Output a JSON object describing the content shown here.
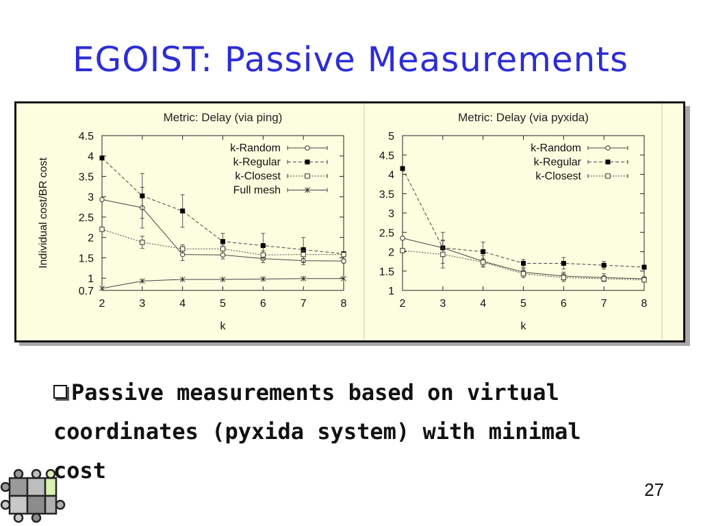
{
  "slide": {
    "title": "EGOIST: Passive Measurements",
    "bullet": "Passive measurements based on virtual coordinates (pyxida system) with minimal cost",
    "page_number": "27"
  },
  "chart_data": [
    {
      "type": "line",
      "title": "Metric: Delay (via ping)",
      "xlabel": "k",
      "ylabel": "Individual cost/BR cost",
      "x": [
        2,
        3,
        4,
        5,
        6,
        7,
        8
      ],
      "xlim": [
        2,
        8
      ],
      "ylim": [
        0.7,
        4.5
      ],
      "yticks": [
        "0.7",
        "1",
        "1.5",
        "2",
        "2.5",
        "3",
        "3.5",
        "4",
        "4.5"
      ],
      "xticks": [
        "2",
        "3",
        "4",
        "5",
        "6",
        "7",
        "8"
      ],
      "legend": "top-right",
      "series": [
        {
          "name": "k-Random",
          "marker": "open-circle",
          "dash": "solid",
          "values": [
            2.93,
            2.73,
            1.58,
            1.57,
            1.48,
            1.43,
            1.42
          ],
          "err": [
            0,
            0.5,
            0.15,
            0.1,
            0.1,
            0.1,
            0.05
          ]
        },
        {
          "name": "k-Regular",
          "marker": "filled-square",
          "dash": "dashed",
          "values": [
            3.95,
            3.02,
            2.65,
            1.9,
            1.8,
            1.7,
            1.6
          ],
          "err": [
            0,
            0.55,
            0.4,
            0.2,
            0.3,
            0.3,
            0.05
          ]
        },
        {
          "name": "k-Closest",
          "marker": "open-square",
          "dash": "dotted",
          "values": [
            2.2,
            1.88,
            1.72,
            1.72,
            1.57,
            1.58,
            1.58
          ],
          "err": [
            0,
            0.15,
            0.1,
            0.1,
            0.1,
            0.1,
            0.05
          ]
        },
        {
          "name": "Full mesh",
          "marker": "star",
          "dash": "solid",
          "values": [
            0.75,
            0.93,
            0.97,
            0.97,
            0.98,
            0.99,
            0.99
          ],
          "err": [
            0,
            0,
            0,
            0,
            0,
            0,
            0
          ]
        }
      ]
    },
    {
      "type": "line",
      "title": "Metric: Delay (via pyxida)",
      "xlabel": "k",
      "ylabel": "",
      "x": [
        2,
        3,
        4,
        5,
        6,
        7,
        8
      ],
      "xlim": [
        2,
        8
      ],
      "ylim": [
        1,
        5
      ],
      "yticks": [
        "1",
        "1.5",
        "2",
        "2.5",
        "3",
        "3.5",
        "4",
        "4.5",
        "5"
      ],
      "xticks": [
        "2",
        "3",
        "4",
        "5",
        "6",
        "7",
        "8"
      ],
      "legend": "top-right",
      "series": [
        {
          "name": "k-Random",
          "marker": "open-circle",
          "dash": "solid",
          "values": [
            2.35,
            2.1,
            1.75,
            1.47,
            1.37,
            1.33,
            1.3
          ],
          "err": [
            0,
            0.2,
            0.15,
            0.1,
            0.1,
            0.1,
            0.05
          ]
        },
        {
          "name": "k-Regular",
          "marker": "filled-square",
          "dash": "dashed",
          "values": [
            4.15,
            2.1,
            2.0,
            1.7,
            1.7,
            1.65,
            1.6
          ],
          "err": [
            0,
            0.4,
            0.25,
            0.1,
            0.15,
            0.1,
            0.05
          ]
        },
        {
          "name": "k-Closest",
          "marker": "open-square",
          "dash": "dotted",
          "values": [
            2.03,
            1.93,
            1.73,
            1.43,
            1.33,
            1.3,
            1.27
          ],
          "err": [
            0,
            0.35,
            0.1,
            0.1,
            0.1,
            0.05,
            0.05
          ]
        }
      ]
    }
  ]
}
